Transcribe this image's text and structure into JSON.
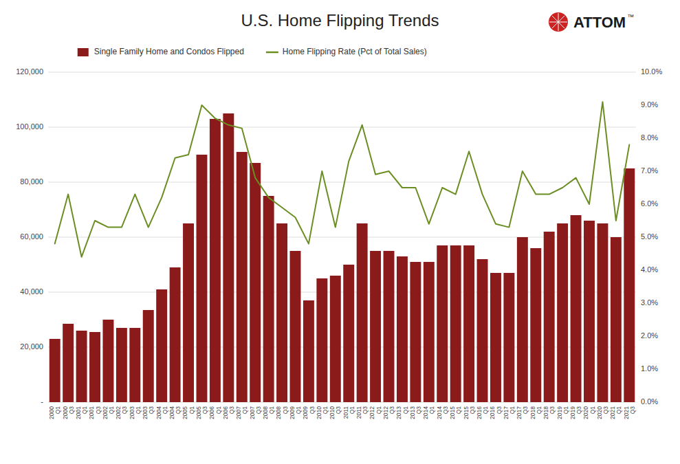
{
  "chart_data": {
    "type": "bar",
    "title": "U.S. Home Flipping Trends",
    "categories": [
      "2000\nQ1",
      "2000\nQ3",
      "2001\nQ1",
      "2001\nQ3",
      "2002\nQ1",
      "2002\nQ3",
      "2003\nQ1",
      "2003\nQ3",
      "2004\nQ1",
      "2004\nQ3",
      "2005\nQ1",
      "2005\nQ3",
      "2006\nQ1",
      "2006\nQ3",
      "2007\nQ1",
      "2007\nQ3",
      "2008\nQ1",
      "2008\nQ3",
      "2009\nQ1",
      "2009\nQ3",
      "2010\nQ1",
      "2010\nQ3",
      "2011\nQ1",
      "2011\nQ3",
      "2012\nQ1",
      "2012\nQ3",
      "2013\nQ1",
      "2013\nQ3",
      "2014\nQ1",
      "2014\nQ3",
      "2015\nQ1",
      "2015\nQ3",
      "2016\nQ1",
      "2016\nQ3",
      "2017\nQ1",
      "2017\nQ3",
      "2018\nQ1",
      "2018\nQ3",
      "2019\nQ1",
      "2019\nQ3",
      "2020\nQ1",
      "2020\nQ3",
      "2021\nQ1",
      "2021\nQ3"
    ],
    "series": [
      {
        "name": "Single Family Home and Condos Flipped",
        "type": "bar",
        "color": "#8B1A1A",
        "values": [
          23000,
          28500,
          26000,
          25500,
          30000,
          27000,
          27000,
          33500,
          41000,
          49000,
          65000,
          90000,
          103000,
          105000,
          91000,
          87000,
          75000,
          65000,
          55000,
          37000,
          45000,
          46000,
          50000,
          65000,
          55000,
          55000,
          53000,
          51000,
          51000,
          57000,
          57000,
          57000,
          52000,
          47000,
          47000,
          60000,
          56000,
          62000,
          65000,
          68000,
          66000,
          65000,
          60000,
          85000
        ]
      },
      {
        "name": "Home Flipping Rate (Pct of Total Sales)",
        "type": "line",
        "color": "#6B8E23",
        "axis": "y2",
        "values": [
          0.048,
          0.063,
          0.044,
          0.055,
          0.053,
          0.053,
          0.063,
          0.053,
          0.062,
          0.074,
          0.075,
          0.09,
          0.086,
          0.084,
          0.083,
          0.068,
          0.062,
          0.059,
          0.056,
          0.048,
          0.07,
          0.053,
          0.073,
          0.084,
          0.069,
          0.07,
          0.065,
          0.065,
          0.054,
          0.065,
          0.063,
          0.076,
          0.063,
          0.054,
          0.053,
          0.07,
          0.063,
          0.063,
          0.065,
          0.068,
          0.06,
          0.091,
          0.055,
          0.078
        ]
      }
    ],
    "ylim": [
      0,
      120000
    ],
    "yticks": [
      {
        "value": 0,
        "label": "-"
      },
      {
        "value": 20000,
        "label": "20,000"
      },
      {
        "value": 40000,
        "label": "40,000"
      },
      {
        "value": 60000,
        "label": "60,000"
      },
      {
        "value": 80000,
        "label": "80,000"
      },
      {
        "value": 100000,
        "label": "100,000"
      },
      {
        "value": 120000,
        "label": "120,000"
      }
    ],
    "y2lim": [
      0.0,
      0.1
    ],
    "y2ticks": [
      {
        "value": 0.0,
        "label": "0.0%"
      },
      {
        "value": 0.01,
        "label": "1.0%"
      },
      {
        "value": 0.02,
        "label": "2.0%"
      },
      {
        "value": 0.03,
        "label": "3.0%"
      },
      {
        "value": 0.04,
        "label": "4.0%"
      },
      {
        "value": 0.05,
        "label": "5.0%"
      },
      {
        "value": 0.06,
        "label": "6.0%"
      },
      {
        "value": 0.07,
        "label": "7.0%"
      },
      {
        "value": 0.08,
        "label": "8.0%"
      },
      {
        "value": 0.09,
        "label": "9.0%"
      },
      {
        "value": 0.1,
        "label": "10.0%"
      }
    ],
    "grid": true,
    "legend": "top",
    "annotations": [
      "ATTOM",
      "™"
    ]
  }
}
